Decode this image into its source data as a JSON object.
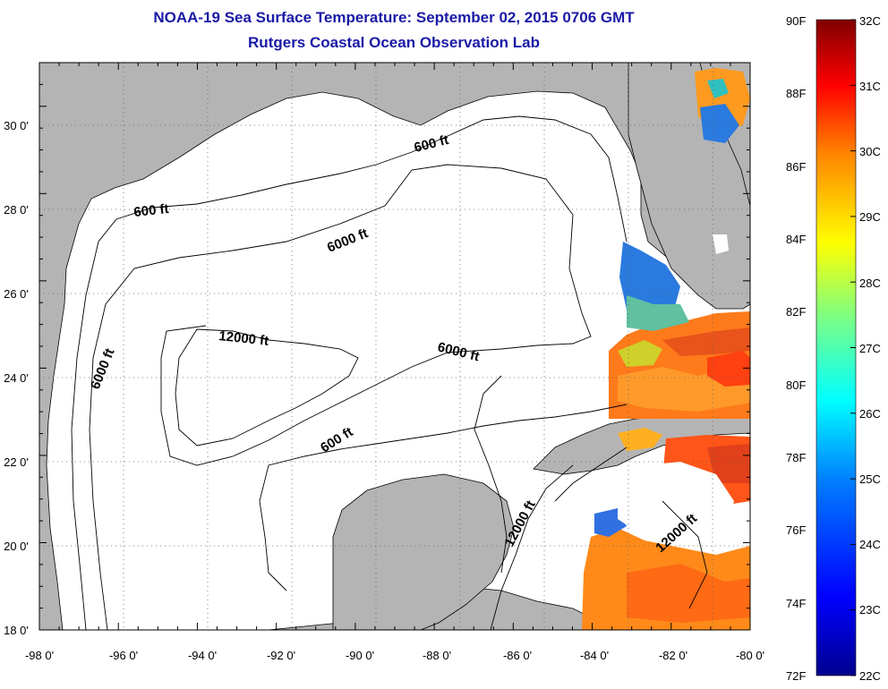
{
  "title": "NOAA-19 Sea Surface Temperature:  September 02, 2015 0706 GMT",
  "subtitle": "Rutgers Coastal Ocean Observation Lab",
  "axes": {
    "x_ticks": [
      "-98 0'",
      "-96 0'",
      "-94 0'",
      "-92 0'",
      "-90 0'",
      "-88 0'",
      "-86 0'",
      "-84 0'",
      "-82 0'",
      "-80 0'"
    ],
    "y_ticks": [
      "18 0'",
      "20 0'",
      "22 0'",
      "24 0'",
      "26 0'",
      "28 0'",
      "30 0'"
    ]
  },
  "contour_labels": [
    {
      "text": "600 ft"
    },
    {
      "text": "600 ft"
    },
    {
      "text": "6000 ft"
    },
    {
      "text": "12000 ft"
    },
    {
      "text": "6000 ft"
    },
    {
      "text": "6000 ft"
    },
    {
      "text": "600 ft"
    },
    {
      "text": "12000 ft"
    },
    {
      "text": "12000 ft"
    }
  ],
  "colorbar": {
    "f_labels": [
      "90F",
      "88F",
      "86F",
      "84F",
      "82F",
      "80F",
      "78F",
      "76F",
      "74F",
      "72F"
    ],
    "c_labels": [
      "32C",
      "31C",
      "30C",
      "29C",
      "28C",
      "27C",
      "26C",
      "25C",
      "24C",
      "23C",
      "22C"
    ],
    "colors": [
      "#00008f",
      "#0000ff",
      "#0080ff",
      "#00ffff",
      "#80ff80",
      "#ffff00",
      "#ff8000",
      "#ff0000",
      "#800000"
    ]
  },
  "colors": {
    "land": "#b4b4b4",
    "water": "#ffffff",
    "title": "#1a1aa6"
  }
}
